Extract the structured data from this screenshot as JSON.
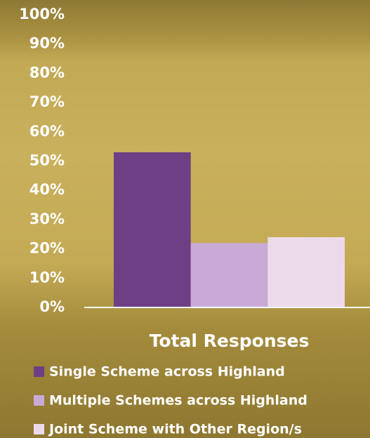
{
  "chart_data": {
    "type": "bar",
    "categories": [
      "Total Responses"
    ],
    "series": [
      {
        "name": "Single Scheme across Highland",
        "color": "#6e3f84",
        "values": [
          53
        ]
      },
      {
        "name": "Multiple Schemes across Highland",
        "color": "#c9aad6",
        "values": [
          22
        ]
      },
      {
        "name": "Joint Scheme with Other Region/s",
        "color": "#ecdaea",
        "values": [
          24
        ]
      }
    ],
    "ylim": [
      0,
      100
    ],
    "yticks": [
      {
        "value": 0,
        "label": "0%"
      },
      {
        "value": 10,
        "label": "10%"
      },
      {
        "value": 20,
        "label": "20%"
      },
      {
        "value": 30,
        "label": "30%"
      },
      {
        "value": 40,
        "label": "40%"
      },
      {
        "value": 50,
        "label": "50%"
      },
      {
        "value": 60,
        "label": "60%"
      },
      {
        "value": 70,
        "label": "70%"
      },
      {
        "value": 80,
        "label": "80%"
      },
      {
        "value": 90,
        "label": "90%"
      },
      {
        "value": 100,
        "label": "100%"
      }
    ],
    "grid": false,
    "legend": "bottom"
  }
}
